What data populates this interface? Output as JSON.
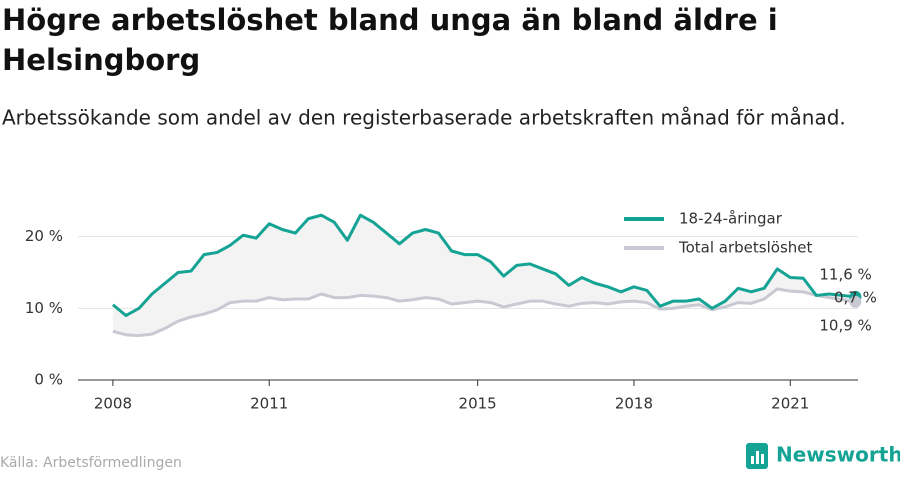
{
  "chart_data": {
    "type": "line",
    "title": "Högre arbetslöshet bland unga än bland äldre i Helsingborg",
    "subtitle": "Arbetssökande som andel av den registerbaserade arbetskraften månad för månad.",
    "source": "Källa: Arbetsförmedlingen",
    "brand": "Newsworthy",
    "annotation": "0,7 %",
    "x": [
      2008,
      2008.25,
      2008.5,
      2008.75,
      2009,
      2009.25,
      2009.5,
      2009.75,
      2010,
      2010.25,
      2010.5,
      2010.75,
      2011,
      2011.25,
      2011.5,
      2011.75,
      2012,
      2012.25,
      2012.5,
      2012.75,
      2013,
      2013.25,
      2013.5,
      2013.75,
      2014,
      2014.25,
      2014.5,
      2014.75,
      2015,
      2015.25,
      2015.5,
      2015.75,
      2016,
      2016.25,
      2016.5,
      2016.75,
      2017,
      2017.25,
      2017.5,
      2017.75,
      2018,
      2018.25,
      2018.5,
      2018.75,
      2019,
      2019.25,
      2019.5,
      2019.75,
      2020,
      2020.25,
      2020.5,
      2020.75,
      2021,
      2021.25,
      2021.5,
      2021.75,
      2022,
      2022.25
    ],
    "series": [
      {
        "name": "18-24-åringar",
        "color": "#14a394",
        "values": [
          10.5,
          9.0,
          10,
          12,
          13.5,
          15,
          15.2,
          17.5,
          17.8,
          18.8,
          20.2,
          19.8,
          21.8,
          21,
          20.5,
          22.5,
          23,
          22,
          19.5,
          23,
          22,
          20.5,
          19,
          20.5,
          21,
          20.5,
          18,
          17.5,
          17.5,
          16.5,
          14.5,
          16,
          16.2,
          15.5,
          14.8,
          13.2,
          14.3,
          13.5,
          13,
          12.3,
          13,
          12.5,
          10.3,
          11,
          11,
          11.3,
          10,
          11,
          12.8,
          12.3,
          12.8,
          15.5,
          14.3,
          14.2,
          11.8,
          12,
          11.8,
          11.6
        ],
        "value_labels": [
          null,
          null,
          null,
          null,
          null,
          null,
          null,
          null,
          null,
          null,
          null,
          null,
          null,
          null,
          null,
          null,
          null,
          null,
          null,
          null,
          null,
          null,
          null,
          null,
          null,
          null,
          null,
          null,
          null,
          null,
          null,
          null,
          null,
          null,
          null,
          null,
          null,
          null,
          null,
          null,
          null,
          null,
          null,
          null,
          null,
          null,
          null,
          null,
          null,
          null,
          null,
          null,
          null,
          null,
          null,
          null,
          null,
          "11,6 %"
        ]
      },
      {
        "name": "Total arbetslöshet",
        "color": "#c9c9d4",
        "values": [
          6.8,
          6.3,
          6.2,
          6.4,
          7.2,
          8.2,
          8.8,
          9.2,
          9.8,
          10.8,
          11,
          11,
          11.5,
          11.2,
          11.3,
          11.3,
          12,
          11.5,
          11.5,
          11.8,
          11.7,
          11.5,
          11,
          11.2,
          11.5,
          11.3,
          10.6,
          10.8,
          11,
          10.8,
          10.2,
          10.6,
          11,
          11,
          10.6,
          10.3,
          10.7,
          10.8,
          10.6,
          10.9,
          11,
          10.8,
          9.9,
          10,
          10.3,
          10.5,
          9.8,
          10.2,
          10.8,
          10.7,
          11.3,
          12.7,
          12.4,
          12.3,
          11.8,
          11.5,
          11.2,
          10.9
        ],
        "value_labels": [
          null,
          null,
          null,
          null,
          null,
          null,
          null,
          null,
          null,
          null,
          null,
          null,
          null,
          null,
          null,
          null,
          null,
          null,
          null,
          null,
          null,
          null,
          null,
          null,
          null,
          null,
          null,
          null,
          null,
          null,
          null,
          null,
          null,
          null,
          null,
          null,
          null,
          null,
          null,
          null,
          null,
          null,
          null,
          null,
          null,
          null,
          null,
          null,
          null,
          null,
          null,
          null,
          null,
          null,
          null,
          null,
          null,
          "10,9 %"
        ]
      }
    ],
    "xlim": [
      2007.33,
      2022.3
    ],
    "xticks": [
      2008,
      2011,
      2015,
      2018,
      2021
    ],
    "ylim": [
      0,
      24
    ],
    "yticks": [
      {
        "value": 0,
        "label": "0 %"
      },
      {
        "value": 10,
        "label": "10 %"
      },
      {
        "value": 20,
        "label": "20 %"
      }
    ],
    "grid": true,
    "legend": "top-right"
  }
}
